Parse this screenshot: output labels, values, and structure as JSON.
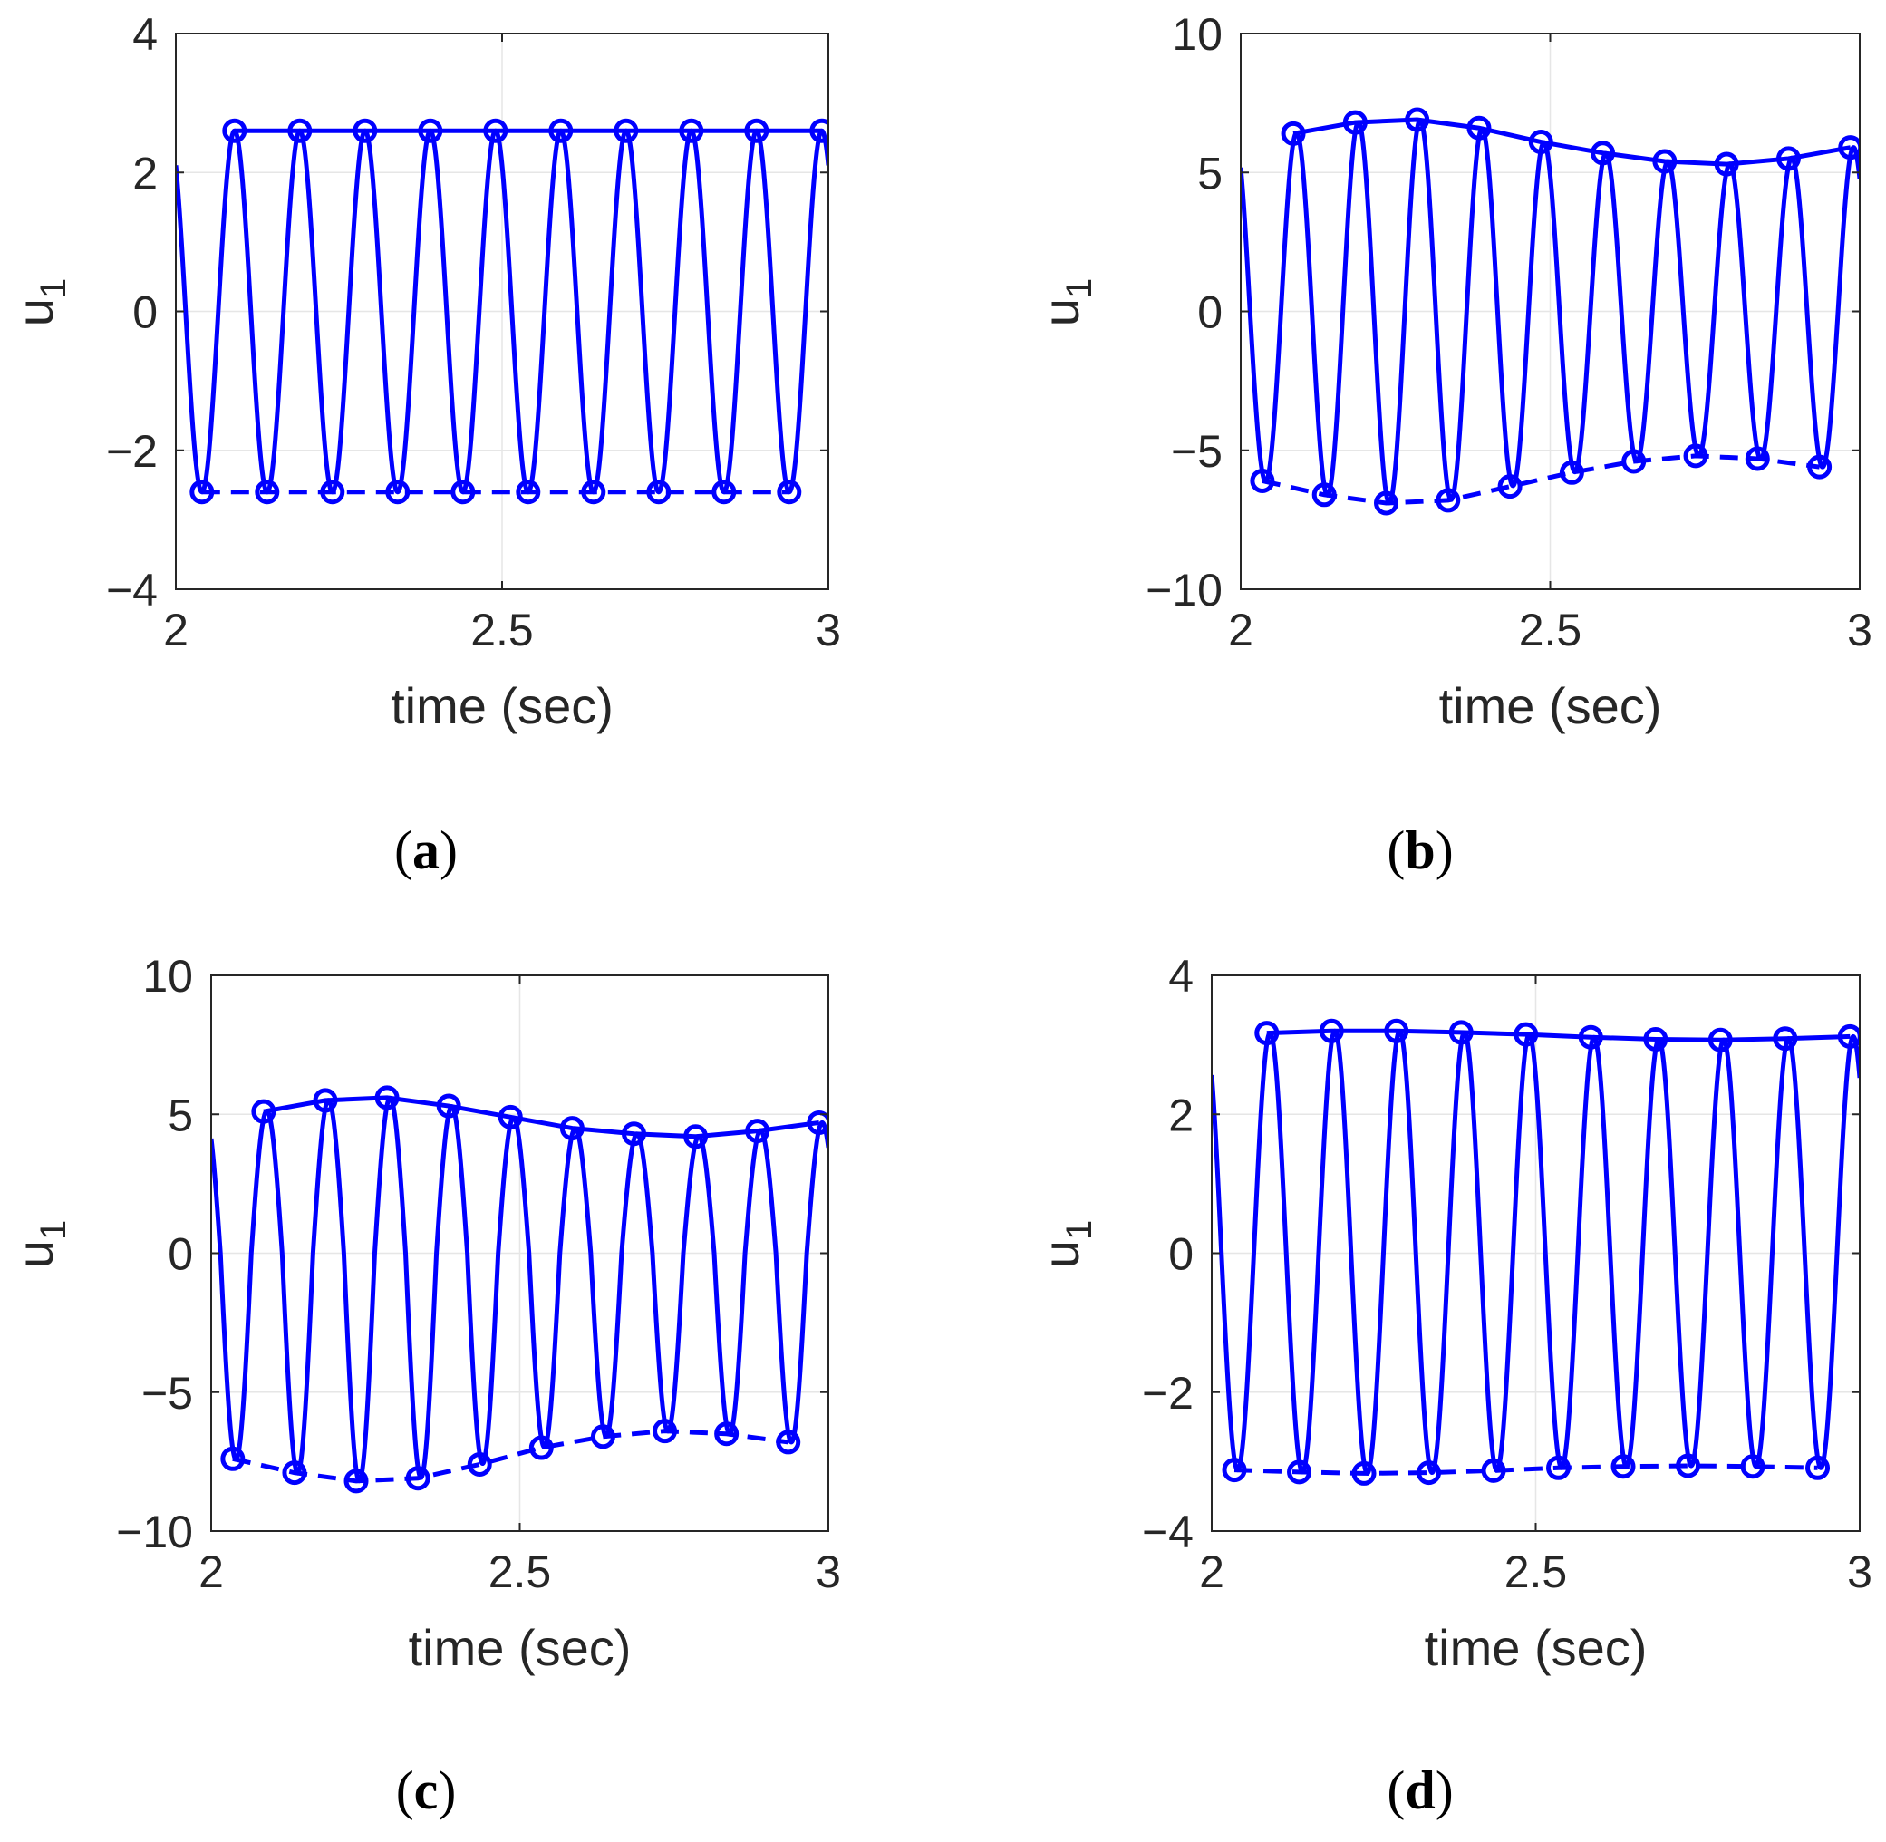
{
  "figure": {
    "panels": [
      {
        "caption_open": "(",
        "caption_letter": "a",
        "caption_close": ")"
      },
      {
        "caption_open": "(",
        "caption_letter": "b",
        "caption_close": ")"
      },
      {
        "caption_open": "(",
        "caption_letter": "c",
        "caption_close": ")"
      },
      {
        "caption_open": "(",
        "caption_letter": "d",
        "caption_close": ")"
      }
    ]
  },
  "chart_data": [
    {
      "type": "line",
      "panel": "a",
      "xlabel": "time (sec)",
      "ylabel_main": "u",
      "ylabel_sub": "1",
      "xlim": [
        2,
        3
      ],
      "ylim": [
        -4,
        4
      ],
      "xticks": [
        2,
        2.5,
        3
      ],
      "xtick_labels": [
        "2",
        "2.5",
        "3"
      ],
      "yticks": [
        -4,
        -2,
        0,
        2,
        4
      ],
      "ytick_labels": [
        "−4",
        "−2",
        "0",
        "2",
        "4"
      ],
      "grid": true,
      "color": "#0000ff",
      "signal": {
        "name": "u1",
        "freq_hz": 10,
        "phase_zero_at": 2.015
      },
      "series": [
        {
          "name": "upper envelope",
          "style": "solid",
          "marker": "circle",
          "x": [
            2.09,
            2.19,
            2.29,
            2.39,
            2.49,
            2.59,
            2.69,
            2.79,
            2.89,
            2.99
          ],
          "y": [
            2.6,
            2.6,
            2.6,
            2.6,
            2.6,
            2.6,
            2.6,
            2.6,
            2.6,
            2.6
          ]
        },
        {
          "name": "lower envelope",
          "style": "dashed",
          "marker": "circle",
          "x": [
            2.04,
            2.14,
            2.24,
            2.34,
            2.44,
            2.54,
            2.64,
            2.74,
            2.84,
            2.94
          ],
          "y": [
            -2.6,
            -2.6,
            -2.6,
            -2.6,
            -2.6,
            -2.6,
            -2.6,
            -2.6,
            -2.6,
            -2.6
          ]
        }
      ]
    },
    {
      "type": "line",
      "panel": "b",
      "xlabel": "time (sec)",
      "ylabel_main": "u",
      "ylabel_sub": "1",
      "xlim": [
        2,
        3
      ],
      "ylim": [
        -10,
        10
      ],
      "xticks": [
        2,
        2.5,
        3
      ],
      "xtick_labels": [
        "2",
        "2.5",
        "3"
      ],
      "yticks": [
        -10,
        -5,
        0,
        5,
        10
      ],
      "ytick_labels": [
        "−10",
        "−5",
        "0",
        "5",
        "10"
      ],
      "grid": true,
      "color": "#0000ff",
      "signal": {
        "name": "u1",
        "freq_hz": 10,
        "phase_zero_at": 2.015
      },
      "series": [
        {
          "name": "upper envelope",
          "style": "solid",
          "marker": "circle",
          "x": [
            2.085,
            2.185,
            2.285,
            2.385,
            2.485,
            2.585,
            2.685,
            2.785,
            2.885,
            2.985
          ],
          "y": [
            6.4,
            6.8,
            6.9,
            6.6,
            6.1,
            5.7,
            5.4,
            5.3,
            5.5,
            5.9
          ]
        },
        {
          "name": "lower envelope",
          "style": "dashed",
          "marker": "circle",
          "x": [
            2.035,
            2.135,
            2.235,
            2.335,
            2.435,
            2.535,
            2.635,
            2.735,
            2.835,
            2.935
          ],
          "y": [
            -6.1,
            -6.6,
            -6.9,
            -6.8,
            -6.3,
            -5.8,
            -5.4,
            -5.2,
            -5.3,
            -5.6
          ]
        }
      ]
    },
    {
      "type": "line",
      "panel": "c",
      "xlabel": "time (sec)",
      "ylabel_main": "u",
      "ylabel_sub": "1",
      "xlim": [
        2,
        3
      ],
      "ylim": [
        -10,
        10
      ],
      "xticks": [
        2,
        2.5,
        3
      ],
      "xtick_labels": [
        "2",
        "2.5",
        "3"
      ],
      "yticks": [
        -10,
        -5,
        0,
        5,
        10
      ],
      "ytick_labels": [
        "−10",
        "−5",
        "0",
        "5",
        "10"
      ],
      "grid": true,
      "color": "#0000ff",
      "signal": {
        "name": "u1",
        "freq_hz": 10,
        "phase_zero_at": 2.015
      },
      "series": [
        {
          "name": "upper envelope",
          "style": "solid",
          "marker": "circle",
          "x": [
            2.085,
            2.185,
            2.285,
            2.385,
            2.485,
            2.585,
            2.685,
            2.785,
            2.885,
            2.985
          ],
          "y": [
            5.1,
            5.5,
            5.6,
            5.3,
            4.9,
            4.5,
            4.3,
            4.2,
            4.4,
            4.7
          ]
        },
        {
          "name": "lower envelope",
          "style": "dashed",
          "marker": "circle",
          "x": [
            2.035,
            2.135,
            2.235,
            2.335,
            2.435,
            2.535,
            2.635,
            2.735,
            2.835,
            2.935
          ],
          "y": [
            -7.4,
            -7.9,
            -8.2,
            -8.1,
            -7.6,
            -7.0,
            -6.6,
            -6.4,
            -6.5,
            -6.8
          ]
        }
      ]
    },
    {
      "type": "line",
      "panel": "d",
      "xlabel": "time (sec)",
      "ylabel_main": "u",
      "ylabel_sub": "1",
      "xlim": [
        2,
        3
      ],
      "ylim": [
        -4,
        4
      ],
      "xticks": [
        2,
        2.5,
        3
      ],
      "xtick_labels": [
        "2",
        "2.5",
        "3"
      ],
      "yticks": [
        -4,
        -2,
        0,
        2,
        4
      ],
      "ytick_labels": [
        "−4",
        "−2",
        "0",
        "2",
        "4"
      ],
      "grid": true,
      "color": "#0000ff",
      "signal": {
        "name": "u1",
        "freq_hz": 10,
        "phase_zero_at": 2.015
      },
      "series": [
        {
          "name": "upper envelope",
          "style": "solid",
          "marker": "circle",
          "x": [
            2.085,
            2.185,
            2.285,
            2.385,
            2.485,
            2.585,
            2.685,
            2.785,
            2.885,
            2.985
          ],
          "y": [
            3.17,
            3.2,
            3.2,
            3.18,
            3.15,
            3.11,
            3.08,
            3.07,
            3.09,
            3.12
          ]
        },
        {
          "name": "lower envelope",
          "style": "dashed",
          "marker": "circle",
          "x": [
            2.035,
            2.135,
            2.235,
            2.335,
            2.435,
            2.535,
            2.635,
            2.735,
            2.835,
            2.935
          ],
          "y": [
            -3.12,
            -3.15,
            -3.17,
            -3.16,
            -3.13,
            -3.09,
            -3.07,
            -3.06,
            -3.07,
            -3.09
          ]
        }
      ]
    }
  ]
}
